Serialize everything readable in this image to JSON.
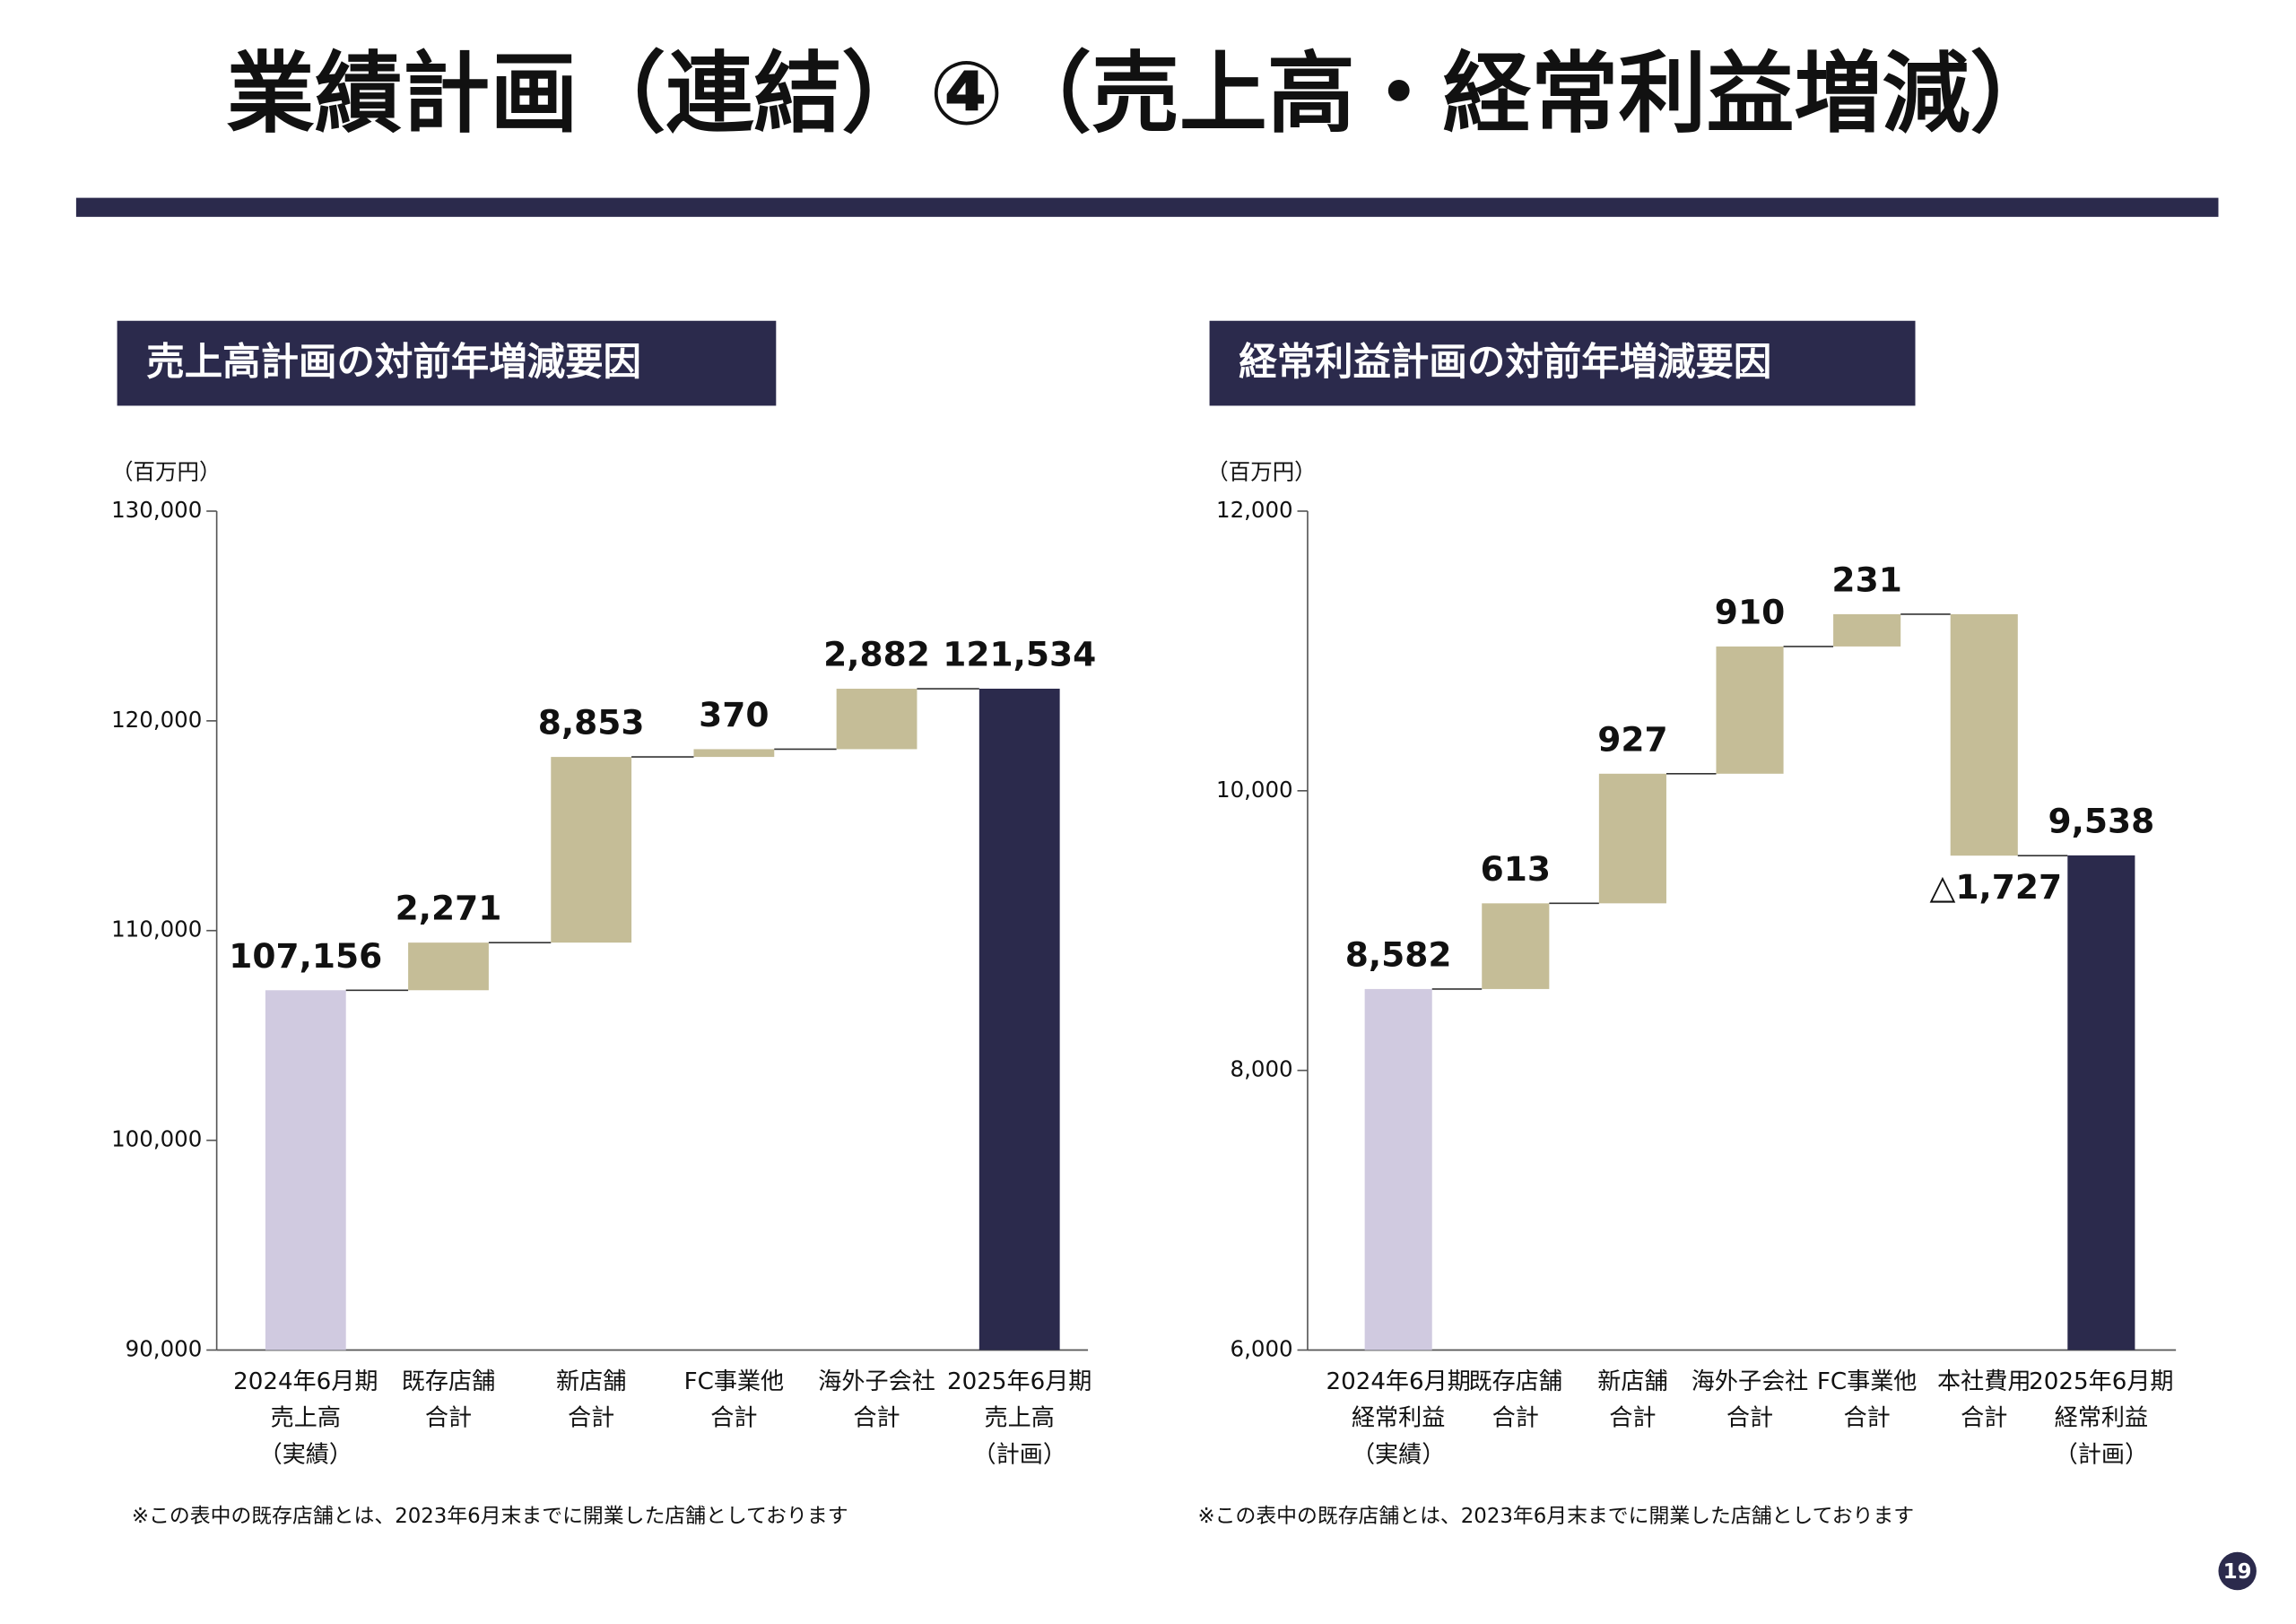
{
  "title": "業績計画（連結）④（売上高・経常利益増減）",
  "page_number": "19",
  "chart_data": [
    {
      "type": "waterfall",
      "title": "売上高計画の対前年増減要因",
      "unit": "（百万円）",
      "categories": [
        [
          "2024年6月期",
          "売上高",
          "（実績）"
        ],
        [
          "既存店舗",
          "合計"
        ],
        [
          "新店舗",
          "合計"
        ],
        [
          "FC事業他",
          "合計"
        ],
        [
          "海外子会社",
          "合計"
        ],
        [
          "2025年6月期",
          "売上高",
          "（計画）"
        ]
      ],
      "values": [
        107156,
        2271,
        8853,
        370,
        2882,
        121534
      ],
      "value_labels": [
        "107,156",
        "2,271",
        "8,853",
        "370",
        "2,882",
        "121,534"
      ],
      "colors": [
        "#d0cae0",
        "#c5bd97",
        "#c5bd97",
        "#c5bd97",
        "#c5bd97",
        "#2b2a4c"
      ],
      "ylim": [
        90000,
        130000
      ],
      "yticks": [
        {
          "value": 90000,
          "label": "90,000"
        },
        {
          "value": 100000,
          "label": "100,000"
        },
        {
          "value": 110000,
          "label": "110,000"
        },
        {
          "value": 120000,
          "label": "120,000"
        },
        {
          "value": 130000,
          "label": "130,000"
        }
      ],
      "note": "※この表中の既存店舗とは、2023年6月末までに開業した店舗としております"
    },
    {
      "type": "waterfall",
      "title": "経常利益計画の対前年増減要因",
      "unit": "（百万円）",
      "categories": [
        [
          "2024年6月期",
          "経常利益",
          "（実績）"
        ],
        [
          "既存店舗",
          "合計"
        ],
        [
          "新店舗",
          "合計"
        ],
        [
          "海外子会社",
          "合計"
        ],
        [
          "FC事業他",
          "合計"
        ],
        [
          "本社費用",
          "合計"
        ],
        [
          "2025年6月期",
          "経常利益",
          "（計画）"
        ]
      ],
      "values": [
        8582,
        613,
        927,
        910,
        231,
        -1727,
        9538
      ],
      "value_labels": [
        "8,582",
        "613",
        "927",
        "910",
        "231",
        "△1,727",
        "9,538"
      ],
      "colors": [
        "#d0cae0",
        "#c5bd97",
        "#c5bd97",
        "#c5bd97",
        "#c5bd97",
        "#c5bd97",
        "#2b2a4c"
      ],
      "ylim": [
        6000,
        12000
      ],
      "yticks": [
        {
          "value": 6000,
          "label": "6,000"
        },
        {
          "value": 8000,
          "label": "8,000"
        },
        {
          "value": 10000,
          "label": "10,000"
        },
        {
          "value": 12000,
          "label": "12,000"
        }
      ],
      "note": "※この表中の既存店舗とは、2023年6月末までに開業した店舗としております"
    }
  ]
}
